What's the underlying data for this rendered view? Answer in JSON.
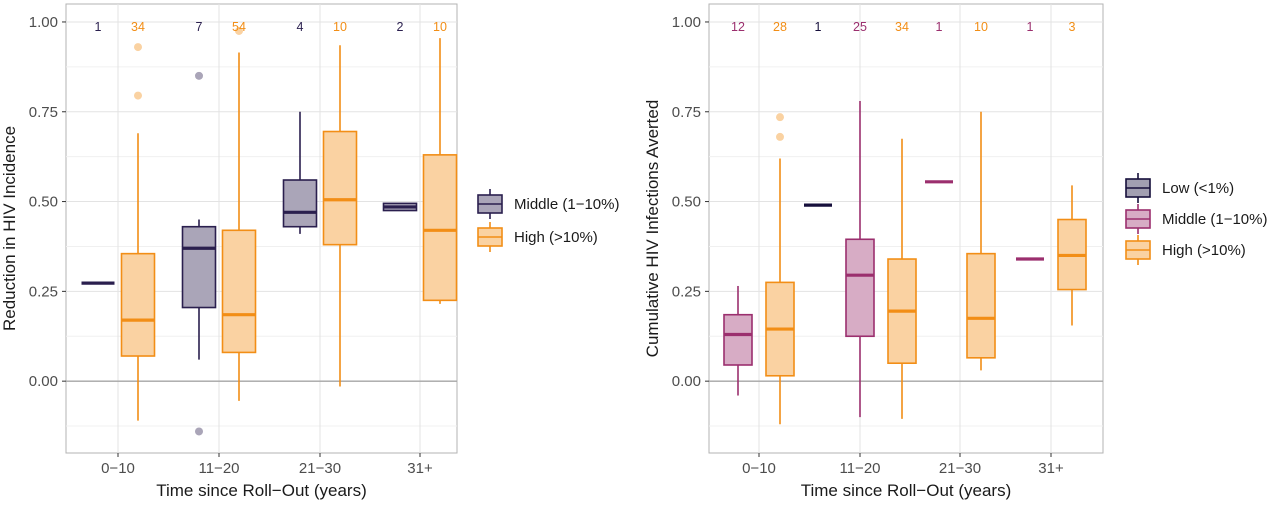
{
  "colors": {
    "Low": "#160f3b",
    "Middle_left": "#2a1f4e",
    "Middle_right": "#9b2f6e",
    "High": "#f28e16"
  },
  "chart_data": [
    {
      "type": "boxplot",
      "xlabel": "Time since Roll−Out (years)",
      "ylabel": "Reduction in HIV Incidence",
      "ylim": [
        -0.2,
        1.05
      ],
      "yticks": [
        "0.00",
        "0.25",
        "0.50",
        "0.75",
        "1.00"
      ],
      "categories": [
        "0−10",
        "11−20",
        "21−30",
        "31+"
      ],
      "legend": [
        "Middle (1−10%)",
        "High (>10%)"
      ],
      "legend_placement": "right",
      "series": [
        {
          "name": "Middle (1−10%)",
          "color_key": "Middle_left",
          "boxes": [
            {
              "cat": 0,
              "n": "1",
              "q1": 0.273,
              "median": 0.273,
              "q3": 0.273,
              "lo": 0.273,
              "hi": 0.273,
              "outliers": []
            },
            {
              "cat": 1,
              "n": "7",
              "q1": 0.205,
              "median": 0.37,
              "q3": 0.43,
              "lo": 0.06,
              "hi": 0.45,
              "outliers": [
                0.85,
                -0.14
              ]
            },
            {
              "cat": 2,
              "n": "4",
              "q1": 0.43,
              "median": 0.47,
              "q3": 0.56,
              "lo": 0.41,
              "hi": 0.75,
              "outliers": []
            },
            {
              "cat": 3,
              "n": "2",
              "q1": 0.475,
              "median": 0.485,
              "q3": 0.495,
              "lo": 0.475,
              "hi": 0.495,
              "outliers": []
            }
          ]
        },
        {
          "name": "High (>10%)",
          "color_key": "High",
          "boxes": [
            {
              "cat": 0,
              "n": "34",
              "q1": 0.07,
              "median": 0.17,
              "q3": 0.355,
              "lo": -0.11,
              "hi": 0.69,
              "outliers": [
                0.93,
                0.795
              ]
            },
            {
              "cat": 1,
              "n": "54",
              "q1": 0.08,
              "median": 0.185,
              "q3": 0.42,
              "lo": -0.055,
              "hi": 0.915,
              "outliers": [
                0.975
              ]
            },
            {
              "cat": 2,
              "n": "10",
              "q1": 0.38,
              "median": 0.505,
              "q3": 0.695,
              "lo": -0.015,
              "hi": 0.935,
              "outliers": []
            },
            {
              "cat": 3,
              "n": "10",
              "q1": 0.225,
              "median": 0.42,
              "q3": 0.63,
              "lo": 0.215,
              "hi": 0.955,
              "outliers": []
            }
          ]
        }
      ]
    },
    {
      "type": "boxplot",
      "xlabel": "Time since Roll−Out (years)",
      "ylabel": "Cumulative HIV Infections Averted",
      "ylim": [
        -0.2,
        1.05
      ],
      "yticks": [
        "0.00",
        "0.25",
        "0.50",
        "0.75",
        "1.00"
      ],
      "categories": [
        "0−10",
        "11−20",
        "21−30",
        "31+"
      ],
      "legend": [
        "Low (<1%)",
        "Middle (1−10%)",
        "High (>10%)"
      ],
      "legend_placement": "right",
      "series": [
        {
          "name": "Low (<1%)",
          "color_key": "Low",
          "boxes": [
            {
              "cat": 1,
              "n": "1",
              "q1": 0.49,
              "median": 0.49,
              "q3": 0.49,
              "lo": 0.49,
              "hi": 0.49,
              "outliers": []
            }
          ]
        },
        {
          "name": "Middle (1−10%)",
          "color_key": "Middle_right",
          "boxes": [
            {
              "cat": 0,
              "n": "12",
              "q1": 0.045,
              "median": 0.13,
              "q3": 0.185,
              "lo": -0.04,
              "hi": 0.265,
              "outliers": []
            },
            {
              "cat": 1,
              "n": "25",
              "q1": 0.125,
              "median": 0.295,
              "q3": 0.395,
              "lo": -0.1,
              "hi": 0.78,
              "outliers": []
            },
            {
              "cat": 2,
              "n": "1",
              "q1": 0.555,
              "median": 0.555,
              "q3": 0.555,
              "lo": 0.555,
              "hi": 0.555,
              "outliers": []
            },
            {
              "cat": 3,
              "n": "1",
              "q1": 0.34,
              "median": 0.34,
              "q3": 0.34,
              "lo": 0.34,
              "hi": 0.34,
              "outliers": []
            }
          ]
        },
        {
          "name": "High (>10%)",
          "color_key": "High",
          "boxes": [
            {
              "cat": 0,
              "n": "28",
              "q1": 0.015,
              "median": 0.145,
              "q3": 0.275,
              "lo": -0.12,
              "hi": 0.62,
              "outliers": [
                0.735,
                0.68
              ]
            },
            {
              "cat": 1,
              "n": "34",
              "q1": 0.05,
              "median": 0.195,
              "q3": 0.34,
              "lo": -0.105,
              "hi": 0.675,
              "outliers": []
            },
            {
              "cat": 2,
              "n": "10",
              "q1": 0.065,
              "median": 0.175,
              "q3": 0.355,
              "lo": 0.03,
              "hi": 0.75,
              "outliers": []
            },
            {
              "cat": 3,
              "n": "3",
              "q1": 0.255,
              "median": 0.35,
              "q3": 0.45,
              "lo": 0.155,
              "hi": 0.545,
              "outliers": []
            }
          ]
        }
      ]
    }
  ]
}
